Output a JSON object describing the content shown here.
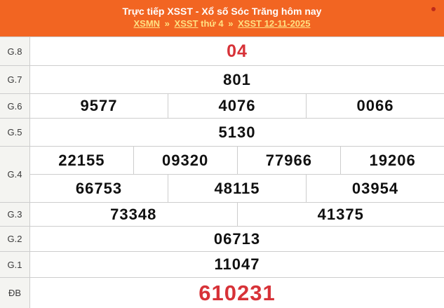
{
  "header": {
    "title": "Trực tiếp XSST - Xổ số Sóc Trăng hôm nay",
    "breadcrumb": {
      "items": [
        {
          "label": "XSMN",
          "type": "link"
        },
        {
          "label": "»",
          "type": "sep"
        },
        {
          "label": "XSST",
          "type": "link"
        },
        {
          "label": "thứ 4",
          "type": "text"
        },
        {
          "label": "»",
          "type": "sep"
        },
        {
          "label": "XSST 12-11-2025",
          "type": "link"
        }
      ]
    }
  },
  "results": {
    "rows": [
      {
        "id": "g8",
        "label": "G.8",
        "highlight": true,
        "lines": [
          [
            "04"
          ]
        ]
      },
      {
        "id": "g7",
        "label": "G.7",
        "highlight": false,
        "lines": [
          [
            "801"
          ]
        ]
      },
      {
        "id": "g6",
        "label": "G.6",
        "highlight": false,
        "lines": [
          [
            "9577",
            "4076",
            "0066"
          ]
        ]
      },
      {
        "id": "g5",
        "label": "G.5",
        "highlight": false,
        "lines": [
          [
            "5130"
          ]
        ]
      },
      {
        "id": "g4",
        "label": "G.4",
        "highlight": false,
        "lines": [
          [
            "22155",
            "09320",
            "77966",
            "19206"
          ],
          [
            "66753",
            "48115",
            "03954"
          ]
        ]
      },
      {
        "id": "g3",
        "label": "G.3",
        "highlight": false,
        "lines": [
          [
            "73348",
            "41375"
          ]
        ]
      },
      {
        "id": "g2",
        "label": "G.2",
        "highlight": false,
        "lines": [
          [
            "06713"
          ]
        ]
      },
      {
        "id": "g1",
        "label": "G.1",
        "highlight": false,
        "lines": [
          [
            "11047"
          ]
        ]
      },
      {
        "id": "db",
        "label": "ĐB",
        "highlight": true,
        "lines": [
          [
            "610231"
          ]
        ]
      }
    ]
  },
  "colors": {
    "header_bg": "#F26522",
    "breadcrumb_yellow": "#FFE082",
    "highlight_red": "#D73238",
    "value_black": "#101010",
    "border_gray": "#CDCDCD",
    "label_bg": "#F4F4F1",
    "dot_red": "#BF2B1A"
  }
}
